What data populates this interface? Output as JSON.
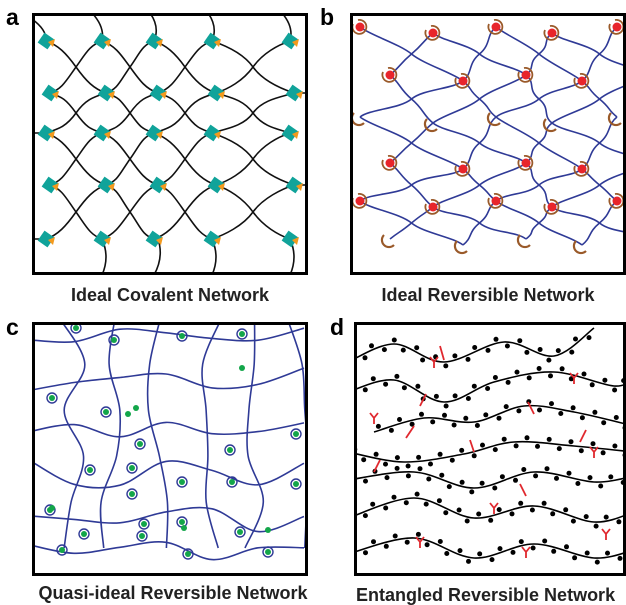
{
  "panels": [
    {
      "letter": "a",
      "caption": "Ideal Covalent Network"
    },
    {
      "letter": "b",
      "caption": "Ideal Reversible Network"
    },
    {
      "letter": "c",
      "caption": "Quasi-ideal Reversible Network"
    },
    {
      "letter": "d",
      "caption": "Entangled Reversible Network"
    }
  ],
  "colors": {
    "chain_a": "#111111",
    "crosslink_teal": "#10a39a",
    "crosslink_orange": "#f39a1e",
    "chain_blue": "#2f3a96",
    "sticker_red": "#e8252b",
    "receptor_brown": "#9a5a2a",
    "sticker_green": "#13a64a",
    "loop_red": "#e0282e",
    "bead_black": "#000000"
  }
}
